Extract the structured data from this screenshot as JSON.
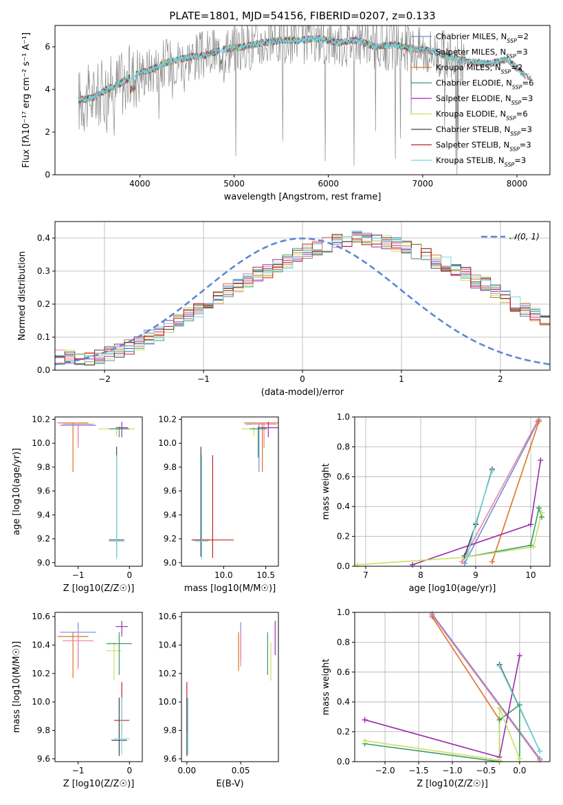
{
  "figure": {
    "title": "PLATE=1801, MJD=54156, FIBERID=0207, z=0.133",
    "series": [
      {
        "label": "Chabrier MILES, N_SSP=2",
        "color": "#6a8ed8"
      },
      {
        "label": "Salpeter MILES, N_SSP=3",
        "color": "#f07fa0"
      },
      {
        "label": "Kroupa MILES, N_SSP=2",
        "color": "#e07020"
      },
      {
        "label": "Chabrier ELODIE, N_SSP=6",
        "color": "#3a9a60"
      },
      {
        "label": "Salpeter ELODIE, N_SSP=3",
        "color": "#9a2ab0"
      },
      {
        "label": "Kroupa ELODIE, N_SSP=6",
        "color": "#c8e060"
      },
      {
        "label": "Chabrier STELIB, N_SSP=3",
        "color": "#404040"
      },
      {
        "label": "Salpeter STELIB, N_SSP=3",
        "color": "#c02020"
      },
      {
        "label": "Kroupa STELIB, N_SSP=3",
        "color": "#70d8e0"
      }
    ],
    "legend_texts": [
      {
        "pre": "Chabrier MILES, N",
        "sub": "SSP",
        "post": "=2"
      },
      {
        "pre": "Salpeter MILES, N",
        "sub": "SSP",
        "post": "=3"
      },
      {
        "pre": "Kroupa MILES, N",
        "sub": "SSP",
        "post": "=2"
      },
      {
        "pre": "Chabrier ELODIE, N",
        "sub": "SSP",
        "post": "=6"
      },
      {
        "pre": "Salpeter ELODIE, N",
        "sub": "SSP",
        "post": "=3"
      },
      {
        "pre": "Kroupa ELODIE, N",
        "sub": "SSP",
        "post": "=6"
      },
      {
        "pre": "Chabrier STELIB, N",
        "sub": "SSP",
        "post": "=3"
      },
      {
        "pre": "Salpeter STELIB, N",
        "sub": "SSP",
        "post": "=3"
      },
      {
        "pre": "Kroupa STELIB, N",
        "sub": "SSP",
        "post": "=3"
      }
    ]
  },
  "labels": {
    "spec_xlabel": "wavelength [Angstrom, rest frame]",
    "spec_ylabel": "Flux [fλ10⁻¹⁷ erg cm⁻² s⁻¹ A⁻¹]",
    "hist_xlabel": "(data-model)/error",
    "hist_ylabel": "Normed distribution",
    "hist_legend": "𝒩(0, 1)",
    "z_xlabel": "Z [log10(Z/Z☉)]",
    "age_label": "age  [log10(age/yr)]",
    "mass_label": "mass [log10(M/M☉)]",
    "ebv_xlabel": "E(B-V)",
    "mw_ylabel": "mass weight"
  },
  "chart_data": [
    {
      "type": "line",
      "title": "PLATE=1801, MJD=54156, FIBERID=0207, z=0.133",
      "xlabel": "wavelength [Angstrom, rest frame]",
      "ylabel": "Flux [fλ10⁻¹⁷ erg cm⁻² s⁻¹ A⁻¹]",
      "xlim": [
        3100,
        8350
      ],
      "ylim": [
        0,
        7.0
      ],
      "xticks": [
        4000,
        5000,
        6000,
        7000,
        8000
      ],
      "yticks": [
        0,
        2,
        4,
        6
      ],
      "data_series": {
        "x": [
          3350,
          3500,
          3650,
          3800,
          3950,
          4100,
          4300,
          4500,
          4700,
          4900,
          5100,
          5300,
          5500,
          5700,
          5900,
          6100,
          6300,
          6500,
          6700,
          6900,
          7100,
          7300,
          7500,
          7700,
          7900,
          8100
        ],
        "y": [
          3.5,
          3.6,
          4.0,
          4.3,
          4.7,
          4.9,
          5.3,
          5.5,
          5.6,
          5.9,
          6.0,
          6.2,
          6.3,
          6.3,
          6.4,
          6.2,
          6.3,
          6.0,
          6.1,
          5.9,
          5.8,
          5.5,
          5.3,
          5.2,
          5.4,
          4.6
        ]
      },
      "legend": "top-right",
      "grid": false
    },
    {
      "type": "bar",
      "xlabel": "(data-model)/error",
      "ylabel": "Normed distribution",
      "xlim": [
        -2.5,
        2.5
      ],
      "ylim": [
        0,
        0.45
      ],
      "xticks": [
        -2,
        -1,
        0,
        1,
        2
      ],
      "yticks": [
        0.0,
        0.1,
        0.2,
        0.3,
        0.4
      ],
      "bin_width": 0.1,
      "reference": {
        "name": "𝒩(0, 1)",
        "mu": 0,
        "sigma": 1
      },
      "bins_start": -2.5,
      "envelope": [
        0.04,
        0.04,
        0.03,
        0.03,
        0.04,
        0.05,
        0.06,
        0.07,
        0.08,
        0.1,
        0.11,
        0.13,
        0.15,
        0.17,
        0.18,
        0.2,
        0.22,
        0.24,
        0.26,
        0.27,
        0.29,
        0.3,
        0.32,
        0.33,
        0.35,
        0.36,
        0.37,
        0.38,
        0.39,
        0.39,
        0.4,
        0.4,
        0.39,
        0.39,
        0.38,
        0.37,
        0.36,
        0.35,
        0.33,
        0.32,
        0.3,
        0.29,
        0.27,
        0.26,
        0.24,
        0.22,
        0.2,
        0.18,
        0.17,
        0.15,
        0.13,
        0.11,
        0.1,
        0.08,
        0.07,
        0.06,
        0.05,
        0.04,
        0.04,
        0.03
      ],
      "grid": true,
      "legend": "top-right"
    },
    {
      "type": "scatter",
      "xlabel": "Z [log10(Z/Z☉)]",
      "ylabel": "age  [log10(age/yr)]",
      "xlim": [
        -1.45,
        0.25
      ],
      "ylim": [
        8.97,
        10.22
      ],
      "xticks": [
        -1,
        0
      ],
      "yticks": [
        9.0,
        9.2,
        9.4,
        9.6,
        9.8,
        10.0,
        10.2
      ],
      "points": [
        {
          "series": 2,
          "x": -1.1,
          "y": 10.17,
          "xerr": 0.3,
          "ylo": 9.76,
          "yhi": 10.17
        },
        {
          "series": 0,
          "x": -1.0,
          "y": 10.15,
          "xerr": 0.35,
          "ylo": 10.0,
          "yhi": 10.15
        },
        {
          "series": 1,
          "x": -1.0,
          "y": 10.16,
          "xerr": 0.3,
          "ylo": 9.96,
          "yhi": 10.16
        },
        {
          "series": 4,
          "x": -0.15,
          "y": 10.13,
          "xerr": 0.12,
          "ylo": 10.05,
          "yhi": 10.18
        },
        {
          "series": 5,
          "x": -0.25,
          "y": 10.12,
          "xerr": 0.35,
          "ylo": 10.06,
          "yhi": 10.14
        },
        {
          "series": 3,
          "x": -0.2,
          "y": 10.12,
          "xerr": 0.2,
          "ylo": 10.05,
          "yhi": 10.14
        },
        {
          "series": 6,
          "x": -0.25,
          "y": 9.19,
          "xerr": 0.15,
          "ylo": 9.05,
          "yhi": 9.97
        },
        {
          "series": 8,
          "x": -0.25,
          "y": 9.18,
          "xerr": 0.15,
          "ylo": 9.03,
          "yhi": 9.9
        }
      ]
    },
    {
      "type": "scatter",
      "xlabel": "mass [log10(M/M☉)]",
      "ylabel": "",
      "xlim": [
        9.5,
        10.65
      ],
      "ylim": [
        8.97,
        10.22
      ],
      "xticks": [
        10.0,
        10.5
      ],
      "yticks": [
        9.0,
        9.2,
        9.4,
        9.6,
        9.8,
        10.0,
        10.2
      ],
      "points": [
        {
          "series": 0,
          "x": 10.42,
          "y": 10.16,
          "xerr": 0.16,
          "ylo": 9.76,
          "yhi": 10.16
        },
        {
          "series": 2,
          "x": 10.46,
          "y": 10.17,
          "xerr": 0.22,
          "ylo": 9.76,
          "yhi": 10.17
        },
        {
          "series": 1,
          "x": 10.48,
          "y": 10.16,
          "xerr": 0.15,
          "ylo": 9.96,
          "yhi": 10.16
        },
        {
          "series": 4,
          "x": 10.53,
          "y": 10.13,
          "xerr": 0.12,
          "ylo": 10.05,
          "yhi": 10.18
        },
        {
          "series": 5,
          "x": 10.36,
          "y": 10.12,
          "xerr": 0.15,
          "ylo": 10.06,
          "yhi": 10.14
        },
        {
          "series": 3,
          "x": 10.41,
          "y": 10.12,
          "xerr": 0.1,
          "ylo": 9.88,
          "yhi": 10.14
        },
        {
          "series": 6,
          "x": 9.73,
          "y": 9.19,
          "xerr": 0.1,
          "ylo": 9.05,
          "yhi": 9.97
        },
        {
          "series": 7,
          "x": 9.87,
          "y": 9.19,
          "xerr": 0.25,
          "ylo": 9.04,
          "yhi": 9.9
        },
        {
          "series": 8,
          "x": 9.74,
          "y": 9.18,
          "xerr": 0.08,
          "ylo": 9.03,
          "yhi": 9.9
        }
      ]
    },
    {
      "type": "line",
      "xlabel": "age  [log10(age/yr)]",
      "ylabel": "mass weight",
      "xlim": [
        6.8,
        10.35
      ],
      "ylim": [
        0,
        1.0
      ],
      "xticks": [
        7,
        8,
        9,
        10
      ],
      "yticks": [
        0.0,
        0.2,
        0.4,
        0.6,
        0.8,
        1.0
      ],
      "grid": true,
      "series": [
        {
          "series": 0,
          "x": [
            8.8,
            10.15
          ],
          "y": [
            0.02,
            0.98
          ]
        },
        {
          "series": 1,
          "x": [
            8.75,
            10.12
          ],
          "y": [
            0.03,
            0.97
          ]
        },
        {
          "series": 2,
          "x": [
            9.3,
            10.15
          ],
          "y": [
            0.03,
            0.97
          ]
        },
        {
          "series": 3,
          "x": [
            8.8,
            10.0,
            10.15,
            10.2
          ],
          "y": [
            0.06,
            0.14,
            0.39,
            0.33
          ]
        },
        {
          "series": 4,
          "x": [
            7.85,
            10.0,
            10.18
          ],
          "y": [
            0.01,
            0.28,
            0.71
          ]
        },
        {
          "series": 5,
          "x": [
            6.85,
            8.8,
            10.05,
            10.2
          ],
          "y": [
            0.01,
            0.06,
            0.13,
            0.36
          ]
        },
        {
          "series": 6,
          "x": [
            8.8,
            9.0,
            9.3
          ],
          "y": [
            0.07,
            0.28,
            0.65
          ]
        },
        {
          "series": 8,
          "x": [
            8.85,
            9.0,
            9.3
          ],
          "y": [
            0.07,
            0.29,
            0.64
          ]
        }
      ]
    },
    {
      "type": "scatter",
      "xlabel": "Z [log10(Z/Z☉)]",
      "ylabel": "mass [log10(M/M☉)]",
      "xlim": [
        -1.45,
        0.25
      ],
      "ylim": [
        9.58,
        10.63
      ],
      "xticks": [
        -1,
        0
      ],
      "yticks": [
        9.6,
        9.8,
        10.0,
        10.2,
        10.4,
        10.6
      ],
      "points": [
        {
          "series": 0,
          "x": -1.0,
          "y": 10.49,
          "xerr": 0.35,
          "ylo": 10.25,
          "yhi": 10.56
        },
        {
          "series": 2,
          "x": -1.1,
          "y": 10.46,
          "xerr": 0.3,
          "ylo": 10.17,
          "yhi": 10.49
        },
        {
          "series": 1,
          "x": -1.0,
          "y": 10.43,
          "xerr": 0.3,
          "ylo": 10.23,
          "yhi": 10.51
        },
        {
          "series": 4,
          "x": -0.15,
          "y": 10.53,
          "xerr": 0.12,
          "ylo": 10.46,
          "yhi": 10.57
        },
        {
          "series": 5,
          "x": -0.3,
          "y": 10.36,
          "xerr": 0.15,
          "ylo": 10.15,
          "yhi": 10.42
        },
        {
          "series": 3,
          "x": -0.2,
          "y": 10.41,
          "xerr": 0.25,
          "ylo": 10.19,
          "yhi": 10.49
        },
        {
          "series": 7,
          "x": -0.15,
          "y": 9.87,
          "xerr": 0.15,
          "ylo": 9.78,
          "yhi": 10.14
        },
        {
          "series": 6,
          "x": -0.2,
          "y": 9.73,
          "xerr": 0.15,
          "ylo": 9.62,
          "yhi": 10.03
        },
        {
          "series": 8,
          "x": -0.15,
          "y": 9.74,
          "xerr": 0.15,
          "ylo": 9.63,
          "yhi": 10.03
        }
      ]
    },
    {
      "type": "scatter",
      "xlabel": "E(B-V)",
      "ylabel": "",
      "xlim": [
        -0.005,
        0.085
      ],
      "ylim": [
        9.58,
        10.63
      ],
      "xticks": [
        0.0,
        0.05
      ],
      "yticks": [
        9.6,
        9.8,
        10.0,
        10.2,
        10.4,
        10.6
      ],
      "points": [
        {
          "series": 0,
          "x": 0.05,
          "ylo": 10.3,
          "yhi": 10.56
        },
        {
          "series": 2,
          "x": 0.048,
          "ylo": 10.22,
          "yhi": 10.49
        },
        {
          "series": 1,
          "x": 0.05,
          "ylo": 10.25,
          "yhi": 10.51
        },
        {
          "series": 3,
          "x": 0.075,
          "ylo": 10.19,
          "yhi": 10.49
        },
        {
          "series": 5,
          "x": 0.078,
          "ylo": 10.15,
          "yhi": 10.42
        },
        {
          "series": 4,
          "x": 0.082,
          "ylo": 10.33,
          "yhi": 10.57
        },
        {
          "series": 7,
          "x": 0.0,
          "ylo": 9.78,
          "yhi": 10.14
        },
        {
          "series": 6,
          "x": 0.0,
          "ylo": 9.62,
          "yhi": 10.03
        },
        {
          "series": 8,
          "x": 0.001,
          "ylo": 9.63,
          "yhi": 10.03
        }
      ]
    },
    {
      "type": "line",
      "xlabel": "Z [log10(Z/Z☉)]",
      "ylabel": "mass weight",
      "xlim": [
        -2.45,
        0.45
      ],
      "ylim": [
        0,
        1.0
      ],
      "xticks": [
        -2.0,
        -1.5,
        -1.0,
        -0.5,
        0.0
      ],
      "yticks": [
        0.0,
        0.2,
        0.4,
        0.6,
        0.8,
        1.0
      ],
      "grid": true,
      "series": [
        {
          "series": 0,
          "x": [
            -1.3,
            0.3
          ],
          "y": [
            0.99,
            0.02
          ]
        },
        {
          "series": 1,
          "x": [
            -1.3,
            0.3
          ],
          "y": [
            0.98,
            0.01
          ]
        },
        {
          "series": 2,
          "x": [
            -1.3,
            -0.3
          ],
          "y": [
            0.97,
            0.28
          ]
        },
        {
          "series": 3,
          "x": [
            -2.3,
            -0.3,
            -0.3,
            0.0,
            0.0
          ],
          "y": [
            0.12,
            0.0,
            0.28,
            0.38,
            0.02
          ]
        },
        {
          "series": 4,
          "x": [
            -2.3,
            -0.3,
            0.0
          ],
          "y": [
            0.28,
            0.03,
            0.71
          ]
        },
        {
          "series": 5,
          "x": [
            -2.3,
            -0.3,
            -0.3,
            0.0
          ],
          "y": [
            0.14,
            0.01,
            0.36,
            0.02
          ]
        },
        {
          "series": 6,
          "x": [
            -0.3,
            0.3
          ],
          "y": [
            0.65,
            0.07
          ]
        },
        {
          "series": 8,
          "x": [
            -0.3,
            0.3
          ],
          "y": [
            0.64,
            0.07
          ]
        }
      ]
    }
  ]
}
